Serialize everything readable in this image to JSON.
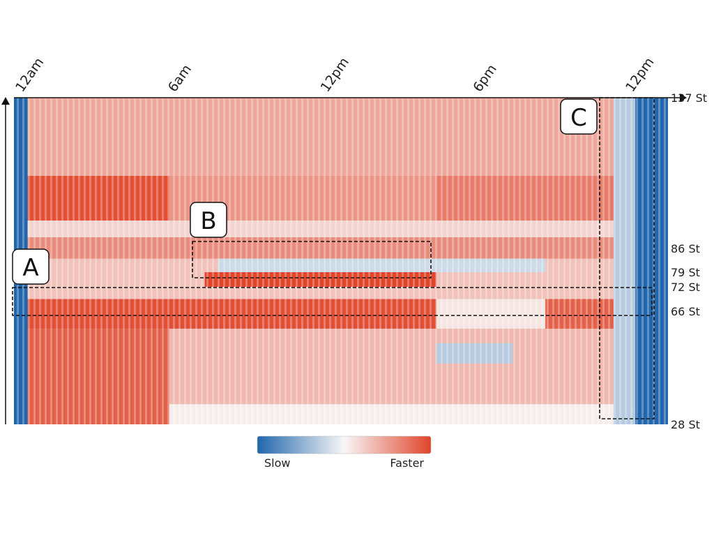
{
  "chart_data": {
    "type": "heatmap",
    "title": "",
    "xlabel": "",
    "ylabel": "",
    "x_ticks": [
      "12am",
      "6am",
      "12pm",
      "6pm",
      "12pm"
    ],
    "x_range_hours": [
      0,
      24
    ],
    "y_ticks": [
      {
        "label": "137 St",
        "station": 137
      },
      {
        "label": "86 St",
        "station": 86
      },
      {
        "label": "79 St",
        "station": 79
      },
      {
        "label": "72 St",
        "station": 72
      },
      {
        "label": "66 St",
        "station": 66
      },
      {
        "label": "28 St",
        "station": 28
      }
    ],
    "colorscale": {
      "low_label": "Slow",
      "high_label": "Faster",
      "colors": [
        "#2166ac",
        "#f7f7f7",
        "#e0452b"
      ]
    },
    "speed_bands": [
      {
        "from_station": 112,
        "to_station": 137,
        "x_from_hour": 0.5,
        "x_to_hour": 23.2,
        "level": 0.45
      },
      {
        "from_station": 96,
        "to_station": 112,
        "x_from_hour": 0.5,
        "x_to_hour": 5.7,
        "level": 0.95
      },
      {
        "from_station": 96,
        "to_station": 112,
        "x_from_hour": 5.7,
        "x_to_hour": 15.5,
        "level": 0.55
      },
      {
        "from_station": 96,
        "to_station": 112,
        "x_from_hour": 15.5,
        "x_to_hour": 23.2,
        "level": 0.7
      },
      {
        "from_station": 90,
        "to_station": 96,
        "x_from_hour": 0.5,
        "x_to_hour": 23.2,
        "level": 0.2
      },
      {
        "from_station": 83,
        "to_station": 90,
        "x_from_hour": 0.5,
        "x_to_hour": 23.2,
        "level": 0.6
      },
      {
        "from_station": 79,
        "to_station": 83,
        "x_from_hour": 7.5,
        "x_to_hour": 19.5,
        "level": -0.2
      },
      {
        "from_station": 72,
        "to_station": 79,
        "x_from_hour": 7.0,
        "x_to_hour": 15.5,
        "level": 1.0
      },
      {
        "from_station": 60,
        "to_station": 69,
        "x_from_hour": 0.5,
        "x_to_hour": 15.5,
        "level": 0.95
      },
      {
        "from_station": 60,
        "to_station": 69,
        "x_from_hour": 15.5,
        "x_to_hour": 19.5,
        "level": 0.1
      },
      {
        "from_station": 60,
        "to_station": 69,
        "x_from_hour": 19.5,
        "x_to_hour": 23.2,
        "level": 0.85
      },
      {
        "from_station": 28,
        "to_station": 60,
        "x_from_hour": 0.5,
        "x_to_hour": 5.7,
        "level": 0.85
      },
      {
        "from_station": 28,
        "to_station": 60,
        "x_from_hour": 5.7,
        "x_to_hour": 23.2,
        "level": 0.35
      },
      {
        "from_station": 48,
        "to_station": 55,
        "x_from_hour": 15.5,
        "x_to_hour": 18.3,
        "level": -0.3
      },
      {
        "from_station": 28,
        "to_station": 34,
        "x_from_hour": 5.7,
        "x_to_hour": 23.2,
        "level": 0.05
      },
      {
        "from_station": 28,
        "to_station": 137,
        "x_from_hour": 0,
        "x_to_hour": 0.5,
        "level": -1.0
      },
      {
        "from_station": 28,
        "to_station": 137,
        "x_from_hour": 22.8,
        "x_to_hour": 24,
        "level": -1.0
      },
      {
        "from_station": 28,
        "to_station": 137,
        "x_from_hour": 22.0,
        "x_to_hour": 22.8,
        "level": -0.3
      }
    ],
    "annotations": [
      {
        "label": "A"
      },
      {
        "label": "B"
      },
      {
        "label": "C"
      }
    ]
  }
}
